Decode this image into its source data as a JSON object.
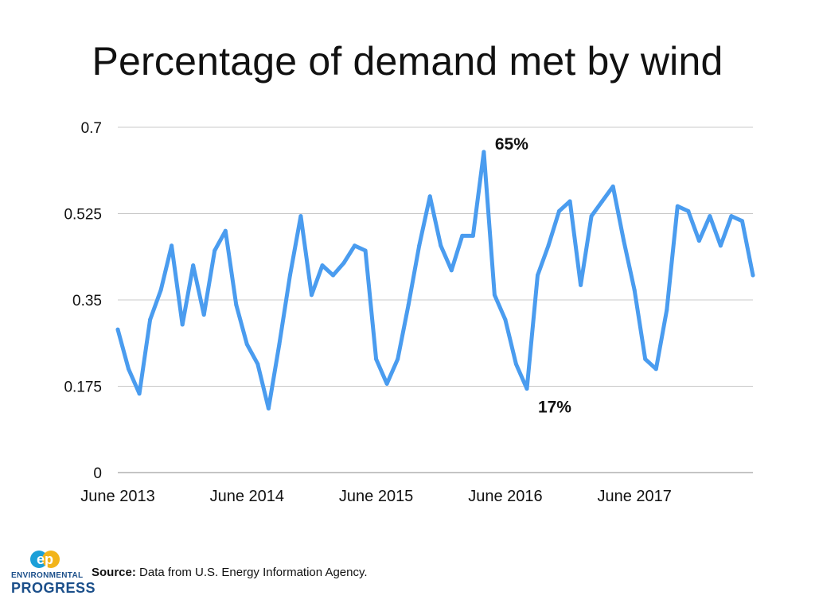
{
  "title": "Percentage of demand met by wind",
  "chart_data": {
    "type": "line",
    "title": "Percentage of demand met by wind",
    "xlabel": "",
    "ylabel": "",
    "ylim": [
      0,
      0.7
    ],
    "yticks": [
      "0",
      "0.175",
      "0.35",
      "0.525",
      "0.7"
    ],
    "ytick_values": [
      0,
      0.175,
      0.35,
      0.525,
      0.7
    ],
    "xtick_labels": [
      "June 2013",
      "June 2014",
      "June 2015",
      "June 2016",
      "June 2017"
    ],
    "xtick_index": [
      0,
      12,
      24,
      36,
      48
    ],
    "grid": true,
    "series": [
      {
        "name": "Percentage of demand met by wind",
        "color": "#4a9cef",
        "values": [
          0.29,
          0.21,
          0.16,
          0.31,
          0.37,
          0.46,
          0.3,
          0.42,
          0.32,
          0.45,
          0.49,
          0.34,
          0.26,
          0.22,
          0.13,
          0.26,
          0.4,
          0.52,
          0.36,
          0.42,
          0.4,
          0.425,
          0.46,
          0.45,
          0.23,
          0.18,
          0.23,
          0.34,
          0.46,
          0.56,
          0.46,
          0.41,
          0.48,
          0.48,
          0.65,
          0.36,
          0.31,
          0.22,
          0.17,
          0.4,
          0.46,
          0.53,
          0.55,
          0.38,
          0.52,
          0.55,
          0.58,
          0.47,
          0.37,
          0.23,
          0.21,
          0.33,
          0.54,
          0.53,
          0.47,
          0.52,
          0.46,
          0.52,
          0.51,
          0.4
        ]
      }
    ],
    "annotations": [
      {
        "text": "65%",
        "index": 34,
        "value": 0.65,
        "position": "right-top"
      },
      {
        "text": "17%",
        "index": 38,
        "value": 0.17,
        "position": "right-bottom"
      }
    ]
  },
  "source": {
    "label": "Source:",
    "text": " Data from U.S. Energy Information Agency."
  },
  "logo": {
    "mark": "ep",
    "line1": "ENVIRONMENTAL",
    "line2": "PROGRESS"
  },
  "colors": {
    "line": "#4a9cef",
    "grid": "#c8c8c8",
    "logo_yellow": "#f2b41b",
    "logo_blue": "#1b9fd8",
    "logo_text": "#1b4f8a"
  }
}
